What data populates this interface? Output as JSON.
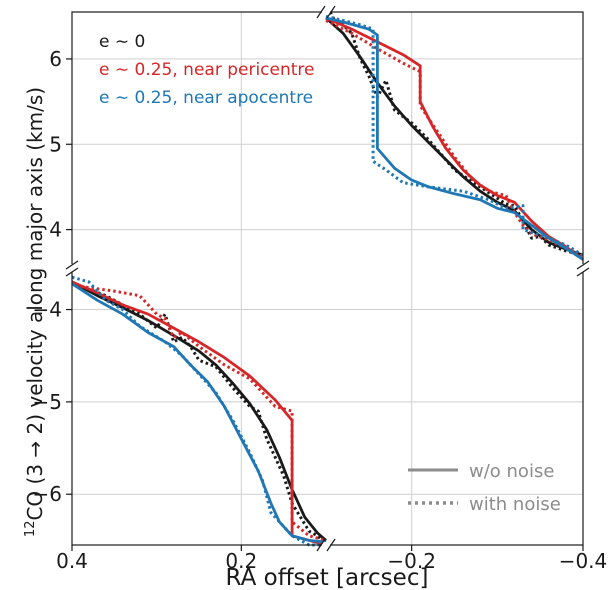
{
  "chart_data": {
    "type": "line",
    "xlabel": "RA offset [arcsec]",
    "ylabel": "$^{12}$CO (3 → 2) velocity along major axis (km/s)",
    "ylabel_parts": {
      "sup": "12",
      "main": "CO (3 → 2) velocity along major axis (km/s)"
    },
    "grid": true,
    "legend_placement": "bottom-right",
    "annotation_placement": "top-left",
    "axis_break": true,
    "colors": {
      "black": "#1a1a1a",
      "red": "#d62728",
      "blue": "#1f77b4",
      "legend_gray": "#8c8c8c",
      "grid": "#cfcfcf"
    },
    "panels": [
      {
        "name": "left",
        "xlim": [
          0.4,
          0.1
        ],
        "xticks": [
          0.4,
          0.2
        ],
        "xtick_labels": [
          "0.4",
          "0.2"
        ],
        "ylim": [
          -6.55,
          -3.55
        ],
        "yticks": [
          -4,
          -5,
          -6
        ],
        "ytick_labels": [
          "−4",
          "−5",
          "−6"
        ],
        "series": [
          {
            "model": "e~0",
            "style": "solid",
            "color": "black",
            "points": [
              [
                0.4,
                -3.7
              ],
              [
                0.37,
                -3.85
              ],
              [
                0.34,
                -3.98
              ],
              [
                0.31,
                -4.12
              ],
              [
                0.28,
                -4.28
              ],
              [
                0.25,
                -4.45
              ],
              [
                0.23,
                -4.6
              ],
              [
                0.21,
                -4.8
              ],
              [
                0.19,
                -5.02
              ],
              [
                0.17,
                -5.3
              ],
              [
                0.155,
                -5.6
              ],
              [
                0.14,
                -5.95
              ],
              [
                0.125,
                -6.25
              ],
              [
                0.11,
                -6.42
              ],
              [
                0.1,
                -6.5
              ]
            ]
          },
          {
            "model": "e~0",
            "style": "dotted",
            "color": "black",
            "points": [
              [
                0.4,
                -3.72
              ],
              [
                0.38,
                -3.78
              ],
              [
                0.36,
                -3.85
              ],
              [
                0.34,
                -3.95
              ],
              [
                0.32,
                -4.05
              ],
              [
                0.3,
                -4.2
              ],
              [
                0.29,
                -4.05
              ],
              [
                0.28,
                -4.35
              ],
              [
                0.27,
                -4.3
              ],
              [
                0.26,
                -4.4
              ],
              [
                0.25,
                -4.55
              ],
              [
                0.23,
                -4.62
              ],
              [
                0.21,
                -4.85
              ],
              [
                0.19,
                -5.05
              ],
              [
                0.18,
                -5.1
              ],
              [
                0.17,
                -5.4
              ],
              [
                0.16,
                -5.6
              ],
              [
                0.15,
                -5.8
              ],
              [
                0.14,
                -6.1
              ],
              [
                0.13,
                -6.25
              ],
              [
                0.12,
                -6.4
              ],
              [
                0.11,
                -6.45
              ],
              [
                0.1,
                -6.55
              ]
            ]
          },
          {
            "model": "e~0.25, near pericentre",
            "style": "solid",
            "color": "red",
            "points": [
              [
                0.4,
                -3.7
              ],
              [
                0.37,
                -3.82
              ],
              [
                0.34,
                -3.95
              ],
              [
                0.31,
                -4.05
              ],
              [
                0.28,
                -4.2
              ],
              [
                0.25,
                -4.35
              ],
              [
                0.22,
                -4.52
              ],
              [
                0.19,
                -4.72
              ],
              [
                0.16,
                -4.98
              ],
              [
                0.14,
                -5.2
              ],
              [
                0.14,
                -6.45
              ],
              [
                0.12,
                -6.5
              ],
              [
                0.1,
                -6.55
              ]
            ]
          },
          {
            "model": "e~0.25, near pericentre",
            "style": "dotted",
            "color": "red",
            "points": [
              [
                0.39,
                -3.75
              ],
              [
                0.35,
                -3.8
              ],
              [
                0.32,
                -3.85
              ],
              [
                0.31,
                -3.95
              ],
              [
                0.3,
                -4.05
              ],
              [
                0.29,
                -4.1
              ],
              [
                0.28,
                -4.3
              ],
              [
                0.27,
                -4.25
              ],
              [
                0.25,
                -4.4
              ],
              [
                0.22,
                -4.6
              ],
              [
                0.19,
                -4.75
              ],
              [
                0.16,
                -5.05
              ],
              [
                0.14,
                -5.1
              ],
              [
                0.14,
                -6.3
              ],
              [
                0.12,
                -6.45
              ],
              [
                0.1,
                -6.5
              ]
            ]
          },
          {
            "model": "e~0.25, near apocentre",
            "style": "solid",
            "color": "blue",
            "points": [
              [
                0.4,
                -3.72
              ],
              [
                0.37,
                -3.9
              ],
              [
                0.34,
                -4.05
              ],
              [
                0.31,
                -4.25
              ],
              [
                0.28,
                -4.4
              ],
              [
                0.26,
                -4.6
              ],
              [
                0.24,
                -4.78
              ],
              [
                0.22,
                -5.05
              ],
              [
                0.2,
                -5.4
              ],
              [
                0.18,
                -5.75
              ],
              [
                0.165,
                -6.1
              ],
              [
                0.155,
                -6.3
              ],
              [
                0.14,
                -6.45
              ],
              [
                0.12,
                -6.5
              ],
              [
                0.1,
                -6.52
              ]
            ]
          },
          {
            "model": "e~0.25, near apocentre",
            "style": "dotted",
            "color": "blue",
            "points": [
              [
                0.4,
                -3.65
              ],
              [
                0.38,
                -3.7
              ],
              [
                0.37,
                -3.8
              ],
              [
                0.36,
                -3.9
              ],
              [
                0.34,
                -4.0
              ],
              [
                0.32,
                -4.18
              ],
              [
                0.29,
                -4.35
              ],
              [
                0.27,
                -4.5
              ],
              [
                0.25,
                -4.7
              ],
              [
                0.23,
                -4.9
              ],
              [
                0.21,
                -5.2
              ],
              [
                0.19,
                -5.55
              ],
              [
                0.175,
                -5.85
              ],
              [
                0.165,
                -6.2
              ],
              [
                0.15,
                -6.35
              ],
              [
                0.14,
                -6.45
              ],
              [
                0.12,
                -6.55
              ],
              [
                0.1,
                -6.55
              ]
            ]
          }
        ]
      },
      {
        "name": "right",
        "xlim": [
          -0.1,
          -0.4
        ],
        "xticks": [
          -0.2,
          -0.4
        ],
        "xtick_labels": [
          "−0.2",
          "−0.4"
        ],
        "ylim": [
          3.55,
          6.55
        ],
        "yticks": [
          6,
          5,
          4
        ],
        "ytick_labels": [
          "6",
          "5",
          "4"
        ],
        "series": [
          {
            "model": "e~0",
            "style": "solid",
            "color": "black",
            "points": [
              [
                -0.1,
                6.48
              ],
              [
                -0.12,
                6.3
              ],
              [
                -0.14,
                6.02
              ],
              [
                -0.16,
                5.72
              ],
              [
                -0.18,
                5.45
              ],
              [
                -0.2,
                5.22
              ],
              [
                -0.22,
                5.02
              ],
              [
                -0.24,
                4.82
              ],
              [
                -0.26,
                4.62
              ],
              [
                -0.28,
                4.45
              ],
              [
                -0.3,
                4.32
              ],
              [
                -0.32,
                4.22
              ],
              [
                -0.34,
                4.0
              ],
              [
                -0.36,
                3.85
              ],
              [
                -0.38,
                3.77
              ],
              [
                -0.4,
                3.7
              ]
            ]
          },
          {
            "model": "e~0",
            "style": "dotted",
            "color": "black",
            "points": [
              [
                -0.105,
                6.55
              ],
              [
                -0.11,
                6.45
              ],
              [
                -0.12,
                6.4
              ],
              [
                -0.13,
                6.3
              ],
              [
                -0.14,
                6.0
              ],
              [
                -0.15,
                5.8
              ],
              [
                -0.16,
                5.55
              ],
              [
                -0.17,
                5.75
              ],
              [
                -0.18,
                5.4
              ],
              [
                -0.2,
                5.25
              ],
              [
                -0.22,
                5.05
              ],
              [
                -0.25,
                4.7
              ],
              [
                -0.28,
                4.5
              ],
              [
                -0.31,
                4.3
              ],
              [
                -0.32,
                4.28
              ],
              [
                -0.33,
                4.1
              ],
              [
                -0.34,
                3.9
              ],
              [
                -0.35,
                3.92
              ],
              [
                -0.36,
                3.82
              ],
              [
                -0.38,
                3.75
              ],
              [
                -0.4,
                3.7
              ]
            ]
          },
          {
            "model": "e~0.25, near pericentre",
            "style": "solid",
            "color": "red",
            "points": [
              [
                -0.1,
                6.48
              ],
              [
                -0.13,
                6.35
              ],
              [
                -0.16,
                6.2
              ],
              [
                -0.19,
                6.05
              ],
              [
                -0.21,
                5.92
              ],
              [
                -0.21,
                5.5
              ],
              [
                -0.225,
                5.2
              ],
              [
                -0.24,
                4.95
              ],
              [
                -0.26,
                4.7
              ],
              [
                -0.28,
                4.52
              ],
              [
                -0.3,
                4.4
              ],
              [
                -0.32,
                4.32
              ],
              [
                -0.34,
                4.1
              ],
              [
                -0.36,
                3.92
              ],
              [
                -0.38,
                3.8
              ],
              [
                -0.4,
                3.65
              ]
            ]
          },
          {
            "model": "e~0.25, near pericentre",
            "style": "dotted",
            "color": "red",
            "points": [
              [
                -0.1,
                6.45
              ],
              [
                -0.13,
                6.3
              ],
              [
                -0.16,
                6.12
              ],
              [
                -0.19,
                5.95
              ],
              [
                -0.21,
                5.85
              ],
              [
                -0.21,
                5.45
              ],
              [
                -0.23,
                5.15
              ],
              [
                -0.25,
                4.85
              ],
              [
                -0.27,
                4.6
              ],
              [
                -0.29,
                4.45
              ],
              [
                -0.31,
                4.4
              ],
              [
                -0.32,
                4.2
              ],
              [
                -0.33,
                4.05
              ],
              [
                -0.34,
                3.95
              ],
              [
                -0.36,
                3.88
              ],
              [
                -0.38,
                3.78
              ],
              [
                -0.4,
                3.68
              ]
            ]
          },
          {
            "model": "e~0.25, near apocentre",
            "style": "solid",
            "color": "blue",
            "points": [
              [
                -0.1,
                6.48
              ],
              [
                -0.125,
                6.42
              ],
              [
                -0.15,
                6.35
              ],
              [
                -0.16,
                6.28
              ],
              [
                -0.16,
                4.95
              ],
              [
                -0.18,
                4.72
              ],
              [
                -0.2,
                4.58
              ],
              [
                -0.22,
                4.5
              ],
              [
                -0.25,
                4.42
              ],
              [
                -0.28,
                4.35
              ],
              [
                -0.3,
                4.25
              ],
              [
                -0.32,
                4.2
              ],
              [
                -0.34,
                4.05
              ],
              [
                -0.36,
                3.9
              ],
              [
                -0.38,
                3.78
              ],
              [
                -0.4,
                3.65
              ]
            ]
          },
          {
            "model": "e~0.25, near apocentre",
            "style": "dotted",
            "color": "blue",
            "points": [
              [
                -0.1,
                6.5
              ],
              [
                -0.12,
                6.45
              ],
              [
                -0.14,
                6.4
              ],
              [
                -0.155,
                6.35
              ],
              [
                -0.155,
                4.8
              ],
              [
                -0.17,
                4.7
              ],
              [
                -0.19,
                4.55
              ],
              [
                -0.22,
                4.5
              ],
              [
                -0.26,
                4.45
              ],
              [
                -0.29,
                4.35
              ],
              [
                -0.31,
                4.25
              ],
              [
                -0.33,
                4.28
              ],
              [
                -0.33,
                4.0
              ],
              [
                -0.36,
                3.9
              ],
              [
                -0.38,
                3.82
              ],
              [
                -0.4,
                3.7
              ]
            ]
          }
        ]
      }
    ],
    "annotations": [
      {
        "text": "e ∼ 0",
        "color": "black"
      },
      {
        "text": "e ∼ 0.25, near pericentre",
        "color": "red"
      },
      {
        "text": "e ∼ 0.25, near apocentre",
        "color": "blue"
      }
    ],
    "legend": [
      {
        "label": "w/o noise",
        "style": "solid"
      },
      {
        "label": "with noise",
        "style": "dotted"
      }
    ]
  }
}
